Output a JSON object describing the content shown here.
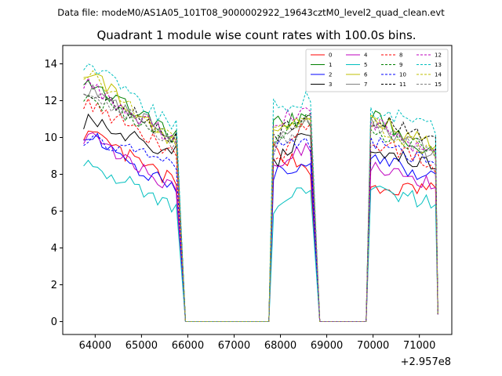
{
  "figure": {
    "subtitle": "Data file: modeM0/AS1A05_101T08_9000002922_19643cztM0_level2_quad_clean.evt"
  },
  "chart_data": {
    "type": "line",
    "title": "Quadrant 1 module wise count rates with 100.0s bins.",
    "xlabel": "",
    "ylabel": "",
    "x_offset_label": "+2.957e8",
    "xlim": [
      63300,
      71700
    ],
    "ylim": [
      -0.7,
      15
    ],
    "xticks": [
      64000,
      65000,
      66000,
      67000,
      68000,
      69000,
      70000,
      71000
    ],
    "xtick_labels": [
      "64000",
      "65000",
      "66000",
      "67000",
      "68000",
      "69000",
      "70000",
      "71000"
    ],
    "yticks": [
      0,
      2,
      4,
      6,
      8,
      10,
      12,
      14
    ],
    "ytick_labels": [
      "0",
      "2",
      "4",
      "6",
      "8",
      "10",
      "12",
      "14"
    ],
    "legend_position": "top-right",
    "segments": [
      {
        "start": 63750,
        "end": 65750,
        "rise_to": null,
        "fall_to": 65950
      },
      {
        "start": 67850,
        "end": 68650,
        "rise_from": 67750,
        "fall_to": 68850
      },
      {
        "start": 69950,
        "end": 71350,
        "rise_from": 69850,
        "fall_to": null
      }
    ],
    "zero_runs": [
      [
        65950,
        67750
      ],
      [
        68850,
        69850
      ]
    ],
    "bin_width": 100,
    "series": [
      {
        "name": "0",
        "color": "#ff0000",
        "dash": false,
        "levels": [
          10.3,
          7.5,
          9.3,
          8.3,
          7.0,
          7.3
        ]
      },
      {
        "name": "1",
        "color": "#008000",
        "dash": false,
        "levels": [
          13.3,
          10.0,
          10.9,
          10.9,
          11.3,
          9.0
        ]
      },
      {
        "name": "2",
        "color": "#0000ff",
        "dash": false,
        "levels": [
          10.3,
          7.1,
          8.0,
          8.9,
          8.9,
          7.7
        ]
      },
      {
        "name": "3",
        "color": "#000000",
        "dash": false,
        "levels": [
          10.9,
          9.2,
          8.6,
          10.4,
          9.0,
          8.7
        ]
      },
      {
        "name": "4",
        "color": "#bf00bf",
        "dash": false,
        "levels": [
          10.1,
          7.2,
          8.6,
          9.5,
          8.6,
          7.5
        ]
      },
      {
        "name": "5",
        "color": "#00bfbf",
        "dash": false,
        "levels": [
          8.9,
          6.0,
          6.3,
          7.4,
          7.3,
          6.4
        ]
      },
      {
        "name": "6",
        "color": "#bfbf00",
        "dash": false,
        "levels": [
          13.7,
          9.6,
          10.3,
          11.2,
          11.1,
          9.4
        ]
      },
      {
        "name": "7",
        "color": "#808080",
        "dash": false,
        "levels": [
          12.8,
          9.9,
          9.7,
          10.9,
          10.7,
          9.1
        ]
      },
      {
        "name": "8",
        "color": "#ff0000",
        "dash": true,
        "levels": [
          12.0,
          9.1,
          8.4,
          11.0,
          9.8,
          8.5
        ]
      },
      {
        "name": "9",
        "color": "#008000",
        "dash": true,
        "levels": [
          12.4,
          9.8,
          9.6,
          11.4,
          10.4,
          9.3
        ]
      },
      {
        "name": "10",
        "color": "#0000ff",
        "dash": true,
        "levels": [
          10.0,
          8.4,
          9.4,
          9.6,
          9.7,
          8.6
        ]
      },
      {
        "name": "11",
        "color": "#000000",
        "dash": true,
        "levels": [
          12.8,
          9.9,
          10.0,
          11.5,
          11.0,
          9.9
        ]
      },
      {
        "name": "12",
        "color": "#bf00bf",
        "dash": true,
        "levels": [
          13.1,
          9.8,
          10.8,
          11.6,
          10.9,
          9.0
        ]
      },
      {
        "name": "13",
        "color": "#00bfbf",
        "dash": true,
        "levels": [
          14.1,
          10.6,
          11.7,
          12.1,
          11.4,
          10.6
        ]
      },
      {
        "name": "14",
        "color": "#bfbf00",
        "dash": true,
        "levels": [
          13.6,
          9.9,
          10.5,
          11.2,
          10.8,
          9.1
        ]
      },
      {
        "name": "15",
        "color": "#808080",
        "dash": true,
        "levels": [
          12.8,
          9.5,
          9.4,
          10.9,
          10.7,
          8.9
        ]
      }
    ]
  }
}
